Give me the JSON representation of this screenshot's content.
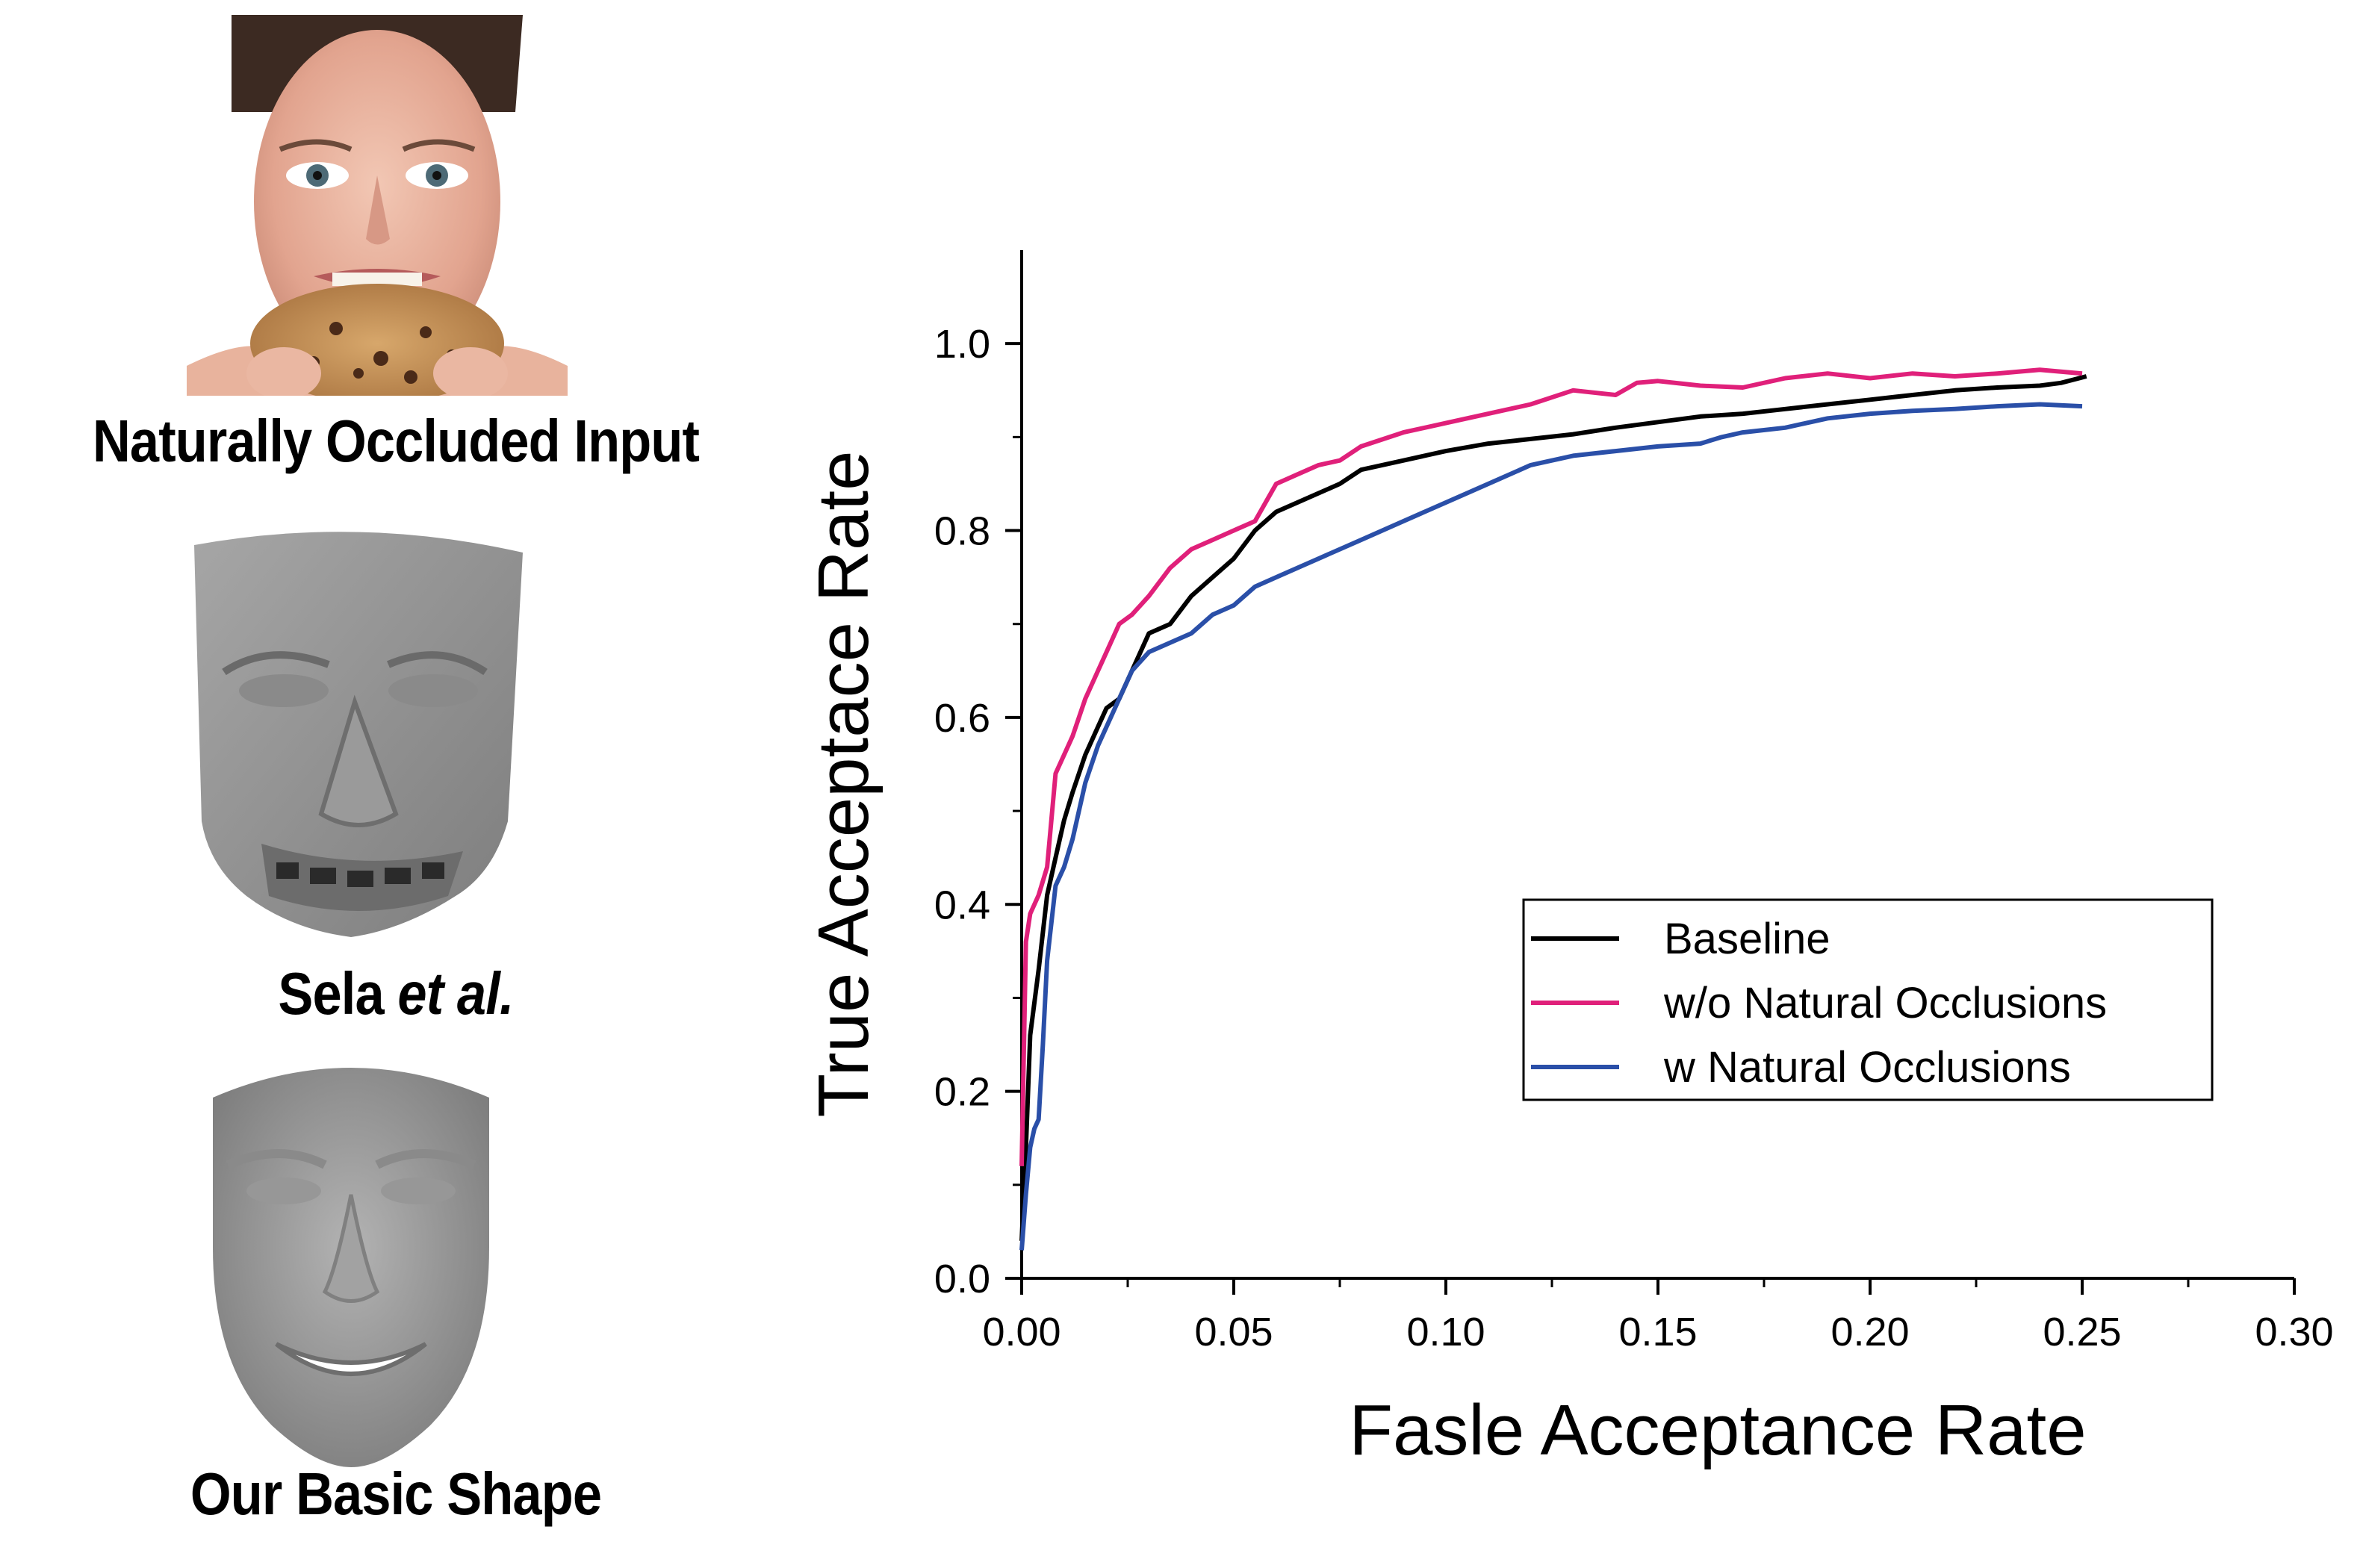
{
  "captions": {
    "input": "Naturally Occluded Input",
    "sela_name": "Sela",
    "sela_etal": "et al.",
    "ours": "Our Basic Shape"
  },
  "colors": {
    "baseline": "#000000",
    "wo_natural": "#e0207a",
    "w_natural": "#2a4fa8"
  },
  "chart_data": {
    "type": "line",
    "title": "",
    "xlabel": "Fasle Acceptance Rate",
    "ylabel": "True Acceptace Rate",
    "xlim": [
      0.0,
      0.3
    ],
    "ylim": [
      0.0,
      1.1
    ],
    "xticks": [
      "0.00",
      "0.05",
      "0.10",
      "0.15",
      "0.20",
      "0.25",
      "0.30"
    ],
    "yticks": [
      "0.0",
      "0.2",
      "0.4",
      "0.6",
      "0.8",
      "1.0"
    ],
    "legend_position": "center-right",
    "series": [
      {
        "name": "Baseline",
        "color": "#000000",
        "x": [
          0.0,
          0.001,
          0.002,
          0.004,
          0.006,
          0.008,
          0.01,
          0.012,
          0.015,
          0.018,
          0.02,
          0.023,
          0.026,
          0.03,
          0.035,
          0.04,
          0.045,
          0.05,
          0.055,
          0.06,
          0.065,
          0.07,
          0.075,
          0.08,
          0.09,
          0.1,
          0.11,
          0.12,
          0.13,
          0.14,
          0.15,
          0.16,
          0.17,
          0.18,
          0.19,
          0.2,
          0.21,
          0.22,
          0.23,
          0.24,
          0.245,
          0.251
        ],
        "y": [
          0.04,
          0.14,
          0.26,
          0.33,
          0.41,
          0.45,
          0.49,
          0.52,
          0.56,
          0.59,
          0.61,
          0.62,
          0.65,
          0.69,
          0.7,
          0.73,
          0.75,
          0.77,
          0.8,
          0.82,
          0.83,
          0.84,
          0.85,
          0.865,
          0.875,
          0.885,
          0.893,
          0.898,
          0.903,
          0.91,
          0.916,
          0.922,
          0.925,
          0.93,
          0.935,
          0.94,
          0.945,
          0.95,
          0.953,
          0.955,
          0.958,
          0.965
        ]
      },
      {
        "name": "w/o Natural Occlusions",
        "color": "#e0207a",
        "x": [
          0.0,
          0.001,
          0.002,
          0.004,
          0.006,
          0.008,
          0.01,
          0.012,
          0.015,
          0.018,
          0.02,
          0.023,
          0.026,
          0.03,
          0.035,
          0.04,
          0.045,
          0.05,
          0.055,
          0.06,
          0.065,
          0.07,
          0.075,
          0.08,
          0.09,
          0.1,
          0.11,
          0.12,
          0.13,
          0.14,
          0.145,
          0.15,
          0.16,
          0.17,
          0.18,
          0.19,
          0.2,
          0.21,
          0.22,
          0.23,
          0.24,
          0.25
        ],
        "y": [
          0.12,
          0.36,
          0.39,
          0.41,
          0.44,
          0.54,
          0.56,
          0.58,
          0.62,
          0.65,
          0.67,
          0.7,
          0.71,
          0.73,
          0.76,
          0.78,
          0.79,
          0.8,
          0.81,
          0.85,
          0.86,
          0.87,
          0.875,
          0.89,
          0.905,
          0.915,
          0.925,
          0.935,
          0.95,
          0.945,
          0.958,
          0.96,
          0.955,
          0.953,
          0.963,
          0.968,
          0.963,
          0.968,
          0.965,
          0.968,
          0.972,
          0.968
        ]
      },
      {
        "name": "w Natural Occlusions",
        "color": "#2a4fa8",
        "x": [
          0.0,
          0.001,
          0.002,
          0.003,
          0.004,
          0.005,
          0.006,
          0.008,
          0.01,
          0.012,
          0.015,
          0.018,
          0.02,
          0.023,
          0.026,
          0.03,
          0.035,
          0.04,
          0.045,
          0.05,
          0.055,
          0.06,
          0.065,
          0.07,
          0.08,
          0.09,
          0.1,
          0.11,
          0.12,
          0.13,
          0.14,
          0.15,
          0.16,
          0.165,
          0.17,
          0.18,
          0.19,
          0.2,
          0.21,
          0.22,
          0.23,
          0.24,
          0.25
        ],
        "y": [
          0.03,
          0.09,
          0.14,
          0.16,
          0.17,
          0.25,
          0.34,
          0.42,
          0.44,
          0.47,
          0.53,
          0.57,
          0.59,
          0.62,
          0.65,
          0.67,
          0.68,
          0.69,
          0.71,
          0.72,
          0.74,
          0.75,
          0.76,
          0.77,
          0.79,
          0.81,
          0.83,
          0.85,
          0.87,
          0.88,
          0.885,
          0.89,
          0.893,
          0.9,
          0.905,
          0.91,
          0.92,
          0.925,
          0.928,
          0.93,
          0.933,
          0.935,
          0.933
        ]
      }
    ]
  }
}
